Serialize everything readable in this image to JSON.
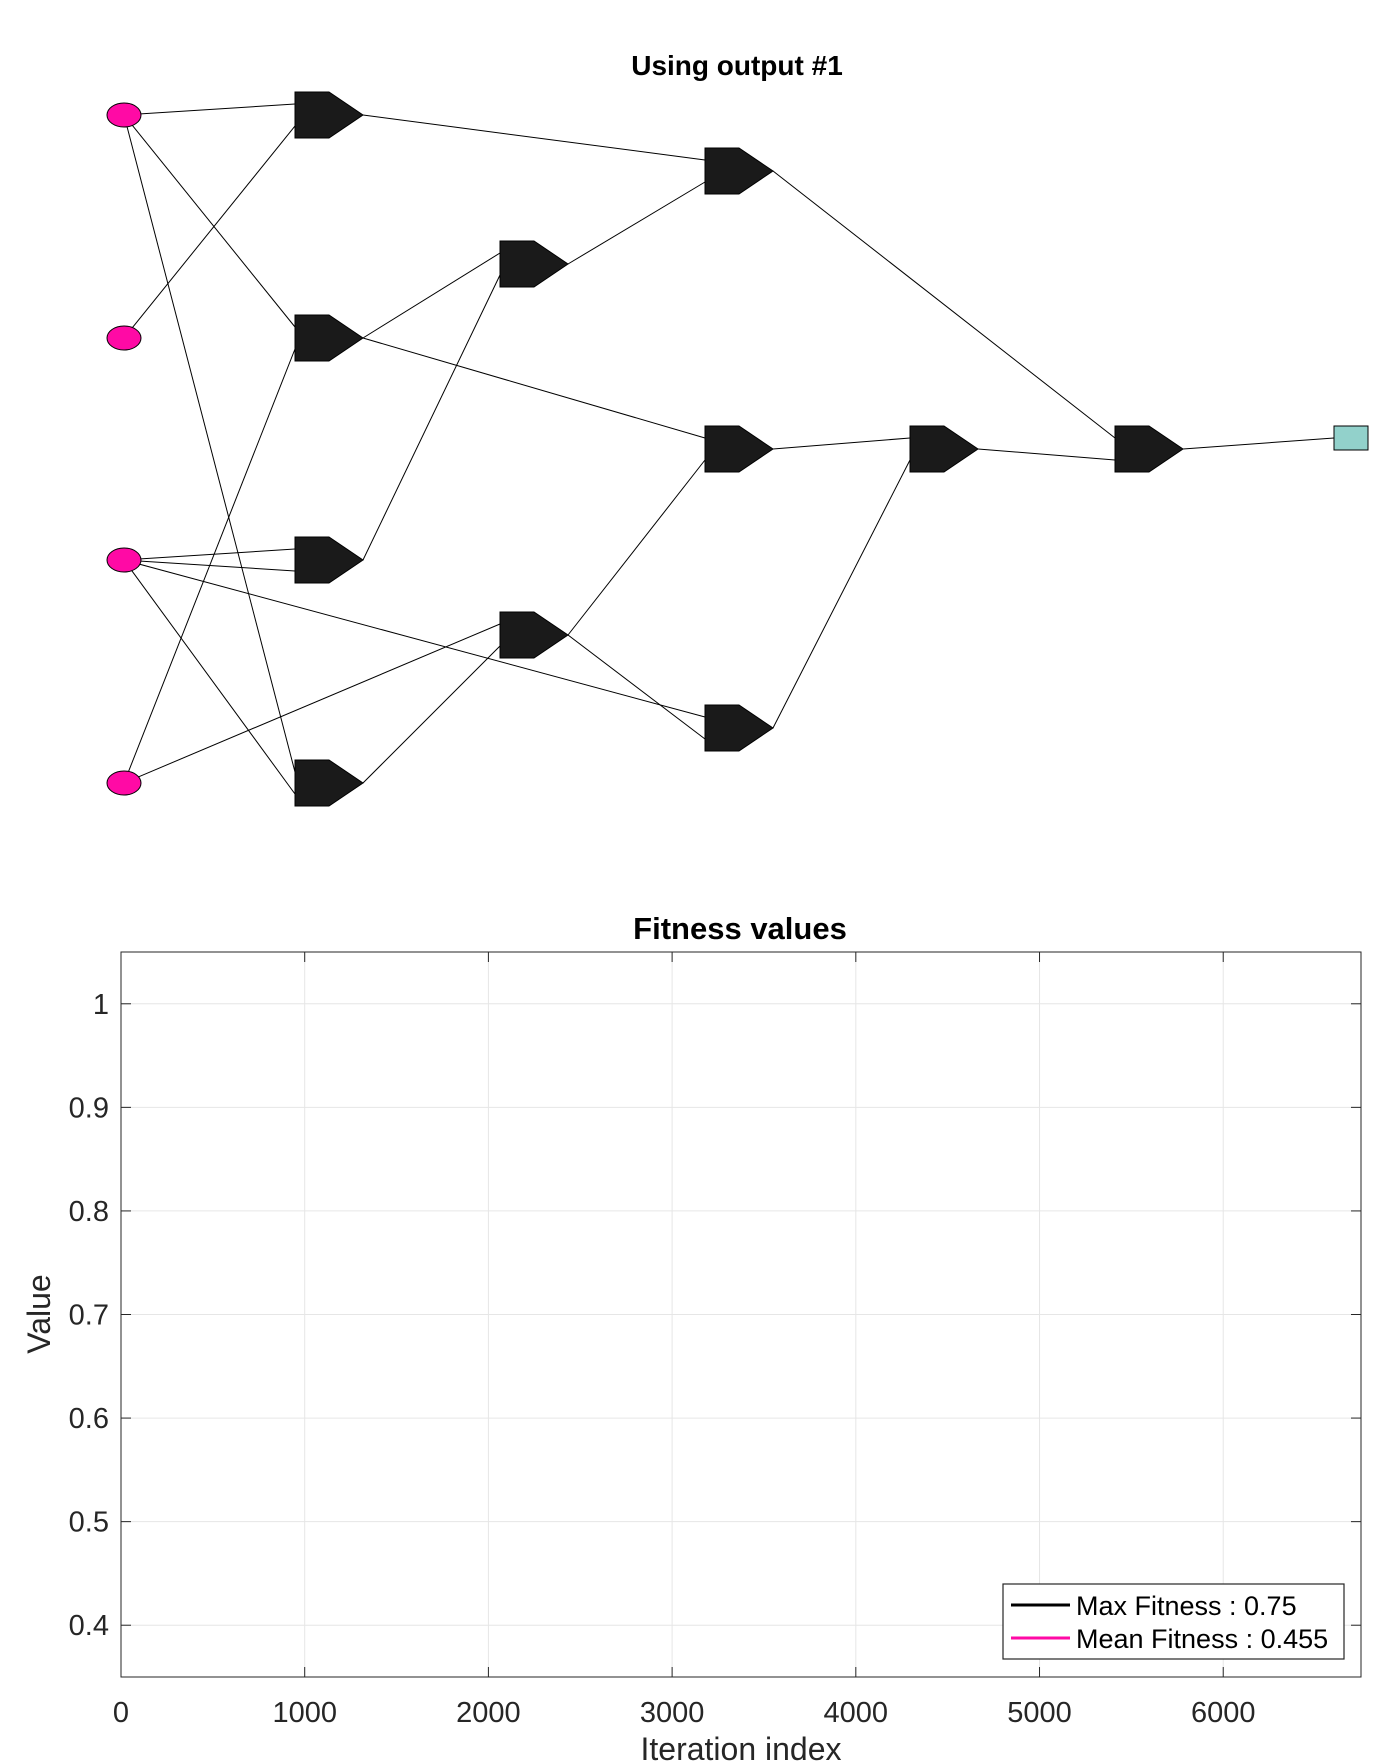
{
  "network": {
    "title": "Using output #1",
    "input_color": "#ff0aa5",
    "gate_color": "#1a1a1a",
    "output_color": "#92d1cb",
    "inputs": [
      "in1",
      "in2",
      "in3",
      "in4"
    ],
    "gates": [
      {
        "id": "g1",
        "inputs": [
          "in1",
          "in2"
        ]
      },
      {
        "id": "g2",
        "inputs": [
          "in1",
          "in4"
        ]
      },
      {
        "id": "g3",
        "inputs": [
          "in3",
          "in3"
        ]
      },
      {
        "id": "g4",
        "inputs": [
          "in1",
          "in3"
        ]
      },
      {
        "id": "g5",
        "inputs": [
          "g2",
          "g3"
        ]
      },
      {
        "id": "g6",
        "inputs": [
          "in4",
          "g4"
        ]
      },
      {
        "id": "g7",
        "inputs": [
          "g1",
          "g5"
        ]
      },
      {
        "id": "g8",
        "inputs": [
          "g2",
          "g6"
        ]
      },
      {
        "id": "g9",
        "inputs": [
          "in3",
          "g6"
        ]
      },
      {
        "id": "g10",
        "inputs": [
          "g8",
          "g9"
        ]
      },
      {
        "id": "g11",
        "inputs": [
          "g7",
          "g10"
        ]
      }
    ],
    "output": {
      "id": "out1",
      "input": "g11"
    }
  },
  "chart_data": {
    "type": "line",
    "title": "Fitness values",
    "xlabel": "Iteration index",
    "ylabel": "Value",
    "xlim": [
      0,
      6750
    ],
    "ylim": [
      0.35,
      1.05
    ],
    "xticks": [
      0,
      1000,
      2000,
      3000,
      4000,
      5000,
      6000
    ],
    "yticks": [
      0.4,
      0.5,
      0.6,
      0.7,
      0.8,
      0.9,
      1
    ],
    "grid": true,
    "legend_location": "bottom-right",
    "series": [
      {
        "name": "Max Fitness : 0.75",
        "color": "#000000",
        "values": []
      },
      {
        "name": "Mean Fitness : 0.455",
        "color": "#ff0aa5",
        "values": []
      }
    ]
  }
}
